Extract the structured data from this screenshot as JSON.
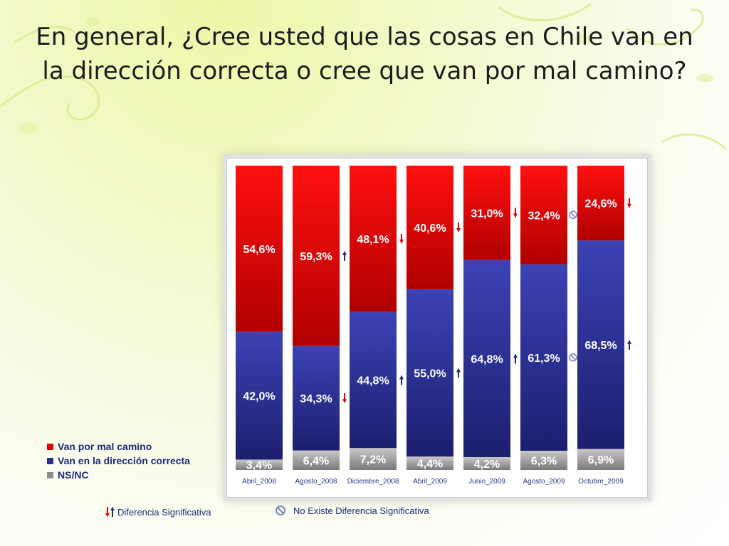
{
  "slide": {
    "title": "En general, ¿Cree usted que las cosas en Chile van en la dirección correcta o cree que van por mal camino?"
  },
  "chart_data": {
    "type": "bar",
    "stacked": true,
    "categories": [
      "Abril_2008",
      "Agosto_2008",
      "Diciembre_2008",
      "Abril_2009",
      "Junio_2009",
      "Agosto_2009",
      "Octubre_2009"
    ],
    "series": [
      {
        "name": "NS/NC",
        "color": "#8c8c8c",
        "values": [
          3.4,
          6.4,
          7.2,
          4.4,
          4.2,
          6.3,
          6.9
        ],
        "labels": [
          "3,4%",
          "6,4%",
          "7,2%",
          "4,4%",
          "4,2%",
          "6,3%",
          "6,9%"
        ]
      },
      {
        "name": "Van en la dirección correcta",
        "color": "#2b2f8c",
        "values": [
          42.0,
          34.3,
          44.8,
          55.0,
          64.8,
          61.3,
          68.5
        ],
        "labels": [
          "42,0%",
          "34,3%",
          "44,8%",
          "55,0%",
          "64,8%",
          "61,3%",
          "68,5%"
        ]
      },
      {
        "name": "Van por mal camino",
        "color": "#e30000",
        "values": [
          54.6,
          59.3,
          48.1,
          40.6,
          31.0,
          32.4,
          24.6
        ],
        "labels": [
          "54,6%",
          "59,3%",
          "48,1%",
          "40,6%",
          "31,0%",
          "32,4%",
          "24,6%"
        ]
      }
    ],
    "markers": {
      "Van por mal camino": [
        "",
        "up",
        "down",
        "down",
        "down",
        "none",
        "down"
      ],
      "Van en la dirección correcta": [
        "",
        "down",
        "up",
        "up",
        "up",
        "none",
        "up"
      ]
    },
    "ylim": [
      0,
      100
    ],
    "legend_position": "bottom-left"
  },
  "legend": {
    "items": [
      {
        "label": "Van por mal camino",
        "color": "#e30000"
      },
      {
        "label": "Van en la dirección correcta",
        "color": "#2b2f8c"
      },
      {
        "label": "NS/NC",
        "color": "#8c8c8c"
      }
    ]
  },
  "notes": {
    "significant": "Diferencia Significativa",
    "not_significant": "No Existe Diferencia Significativa"
  },
  "colors": {
    "red_top": "#ff1010",
    "red_bottom": "#b00000",
    "blue_top": "#3d42b5",
    "blue_bottom": "#1c1f6e",
    "arrow_up": "#1f2a7a",
    "arrow_down": "#e00000"
  }
}
